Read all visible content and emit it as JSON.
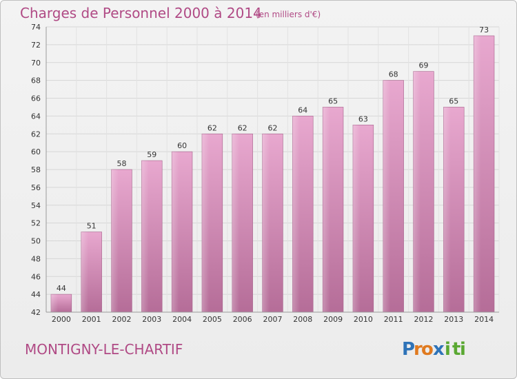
{
  "chart_data": {
    "type": "bar",
    "title": "Charges de Personnel 2000 à 2014",
    "subtitle": "(en milliers d'€)",
    "xlabel": "",
    "ylabel": "",
    "categories": [
      "2000",
      "2001",
      "2002",
      "2003",
      "2004",
      "2005",
      "2006",
      "2007",
      "2008",
      "2009",
      "2010",
      "2011",
      "2012",
      "2013",
      "2014"
    ],
    "values": [
      44,
      51,
      58,
      59,
      60,
      62,
      62,
      62,
      64,
      65,
      63,
      68,
      69,
      65,
      73
    ],
    "ylim": [
      42,
      74
    ],
    "yticks": [
      42,
      44,
      46,
      48,
      50,
      52,
      54,
      56,
      58,
      60,
      62,
      64,
      66,
      68,
      70,
      72,
      74
    ],
    "grid": true,
    "bar_color": "#d98cb8",
    "accent_color": "#b04a85"
  },
  "place_name": "MONTIGNY-LE-CHARTIF",
  "logo": {
    "text": "Proxiti",
    "letters": [
      "P",
      "r",
      "o",
      "x",
      "i",
      "t",
      "i"
    ],
    "colors": [
      "#2e73b8",
      "#e07a1f",
      "#e07a1f",
      "#2e73b8",
      "#5aa832",
      "#5aa832",
      "#5aa832"
    ]
  }
}
